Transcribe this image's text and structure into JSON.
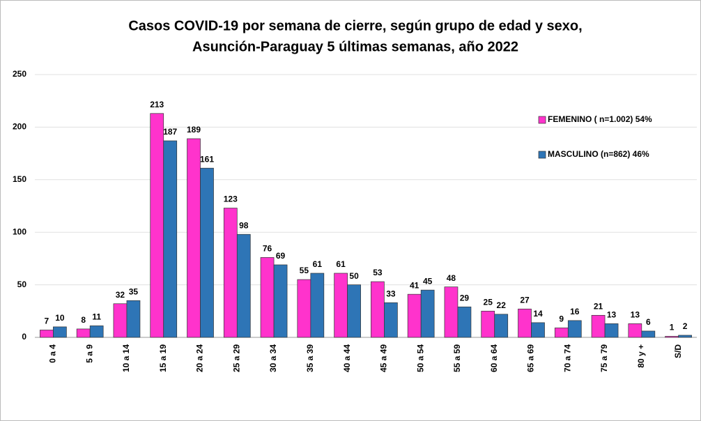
{
  "chart_data": {
    "type": "bar",
    "title": "Casos COVID-19 por semana de cierre, según grupo de edad y sexo,",
    "subtitle": "Asunción-Paraguay  5 últimas semanas, año 2022",
    "categories": [
      "0 a 4",
      "5 a 9",
      "10 a 14",
      "15 a 19",
      "20 a 24",
      "25 a 29",
      "30 a 34",
      "35 a 39",
      "40 a 44",
      "45 a 49",
      "50 a 54",
      "55 a 59",
      "60 a 64",
      "65 a 69",
      "70 a 74",
      "75 a 79",
      "80 y +",
      "S/D"
    ],
    "series": [
      {
        "name": "FEMENINO ( n=1.002) 54%",
        "color": "#ff33cc",
        "values": [
          7,
          8,
          32,
          213,
          189,
          123,
          76,
          55,
          61,
          53,
          41,
          48,
          25,
          27,
          9,
          21,
          13,
          1
        ]
      },
      {
        "name": "MASCULINO (n=862) 46%",
        "color": "#2e75b6",
        "values": [
          10,
          11,
          35,
          187,
          161,
          98,
          69,
          61,
          50,
          33,
          45,
          29,
          22,
          14,
          16,
          13,
          6,
          2
        ]
      }
    ],
    "ylim": [
      0,
      250
    ],
    "yticks": [
      0,
      50,
      100,
      150,
      200,
      250
    ],
    "grid": true,
    "legend": "right"
  }
}
